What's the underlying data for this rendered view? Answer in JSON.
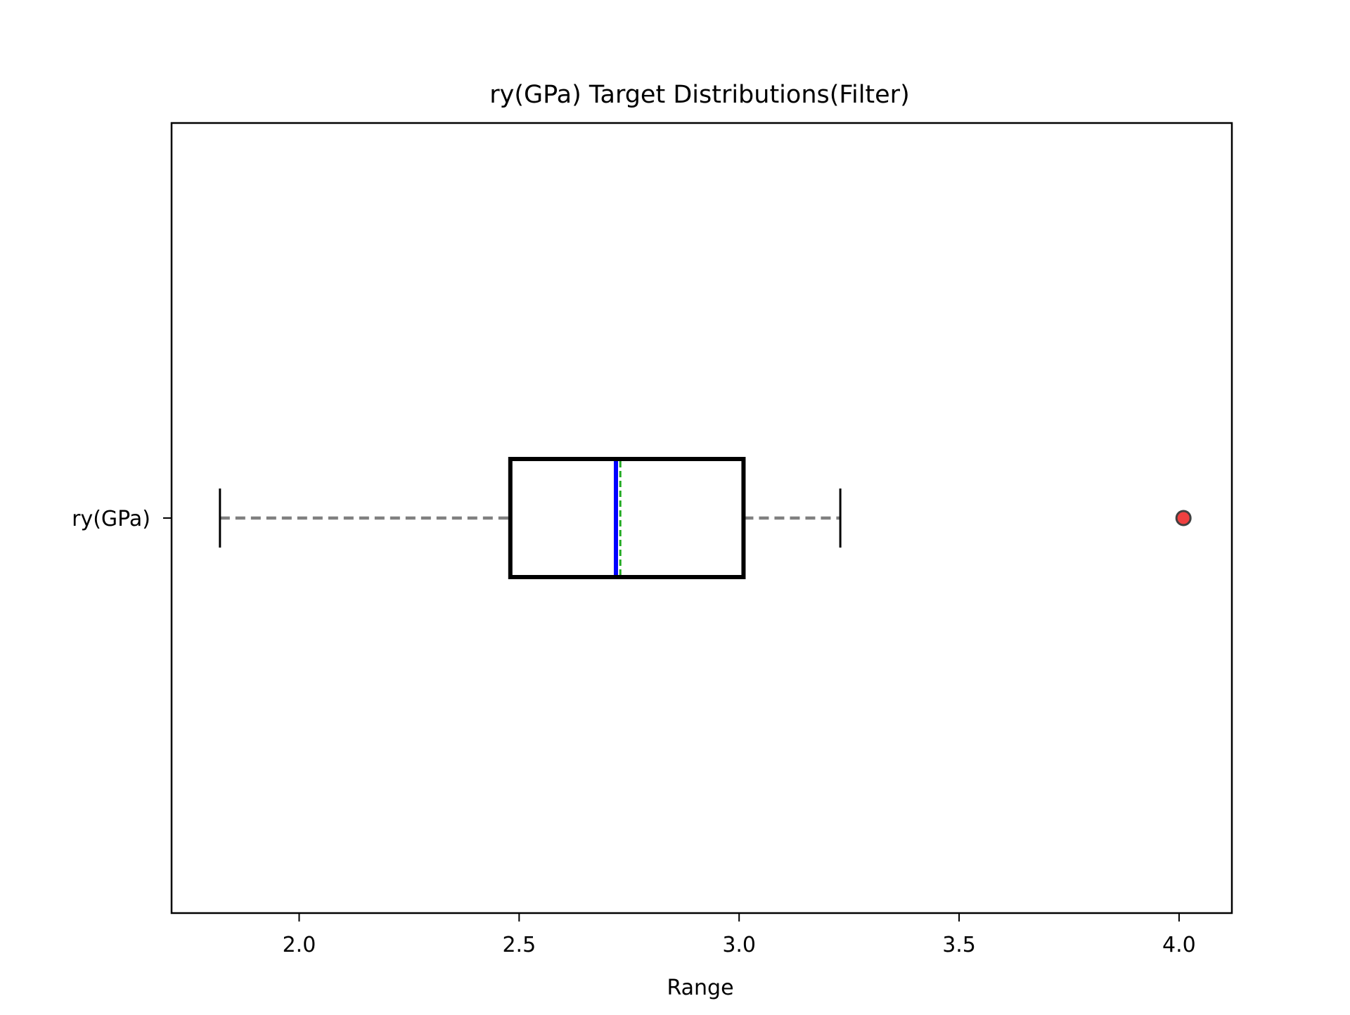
{
  "chart_data": {
    "type": "box",
    "title": "ry(GPa) Target Distributions(Filter)",
    "xlabel": "Range",
    "ylabel": "",
    "orientation": "horizontal",
    "xlim": [
      1.71,
      4.12
    ],
    "xticks": [
      2.0,
      2.5,
      3.0,
      3.5,
      4.0
    ],
    "xtick_labels": [
      "2.0",
      "2.5",
      "3.0",
      "3.5",
      "4.0"
    ],
    "categories": [
      "ry(GPa)"
    ],
    "series": [
      {
        "whisker_low": 1.82,
        "q1": 2.48,
        "median": 2.72,
        "mean": 2.73,
        "q3": 3.01,
        "whisker_high": 3.23,
        "outliers": [
          4.01
        ]
      }
    ],
    "grid": false,
    "colors": {
      "box_edge": "#000000",
      "median": "#0000ff",
      "mean": "#22aa22",
      "whisker": "#808080",
      "cap": "#000000",
      "outlier_fill": "#f04040",
      "outlier_edge": "#404040"
    }
  }
}
